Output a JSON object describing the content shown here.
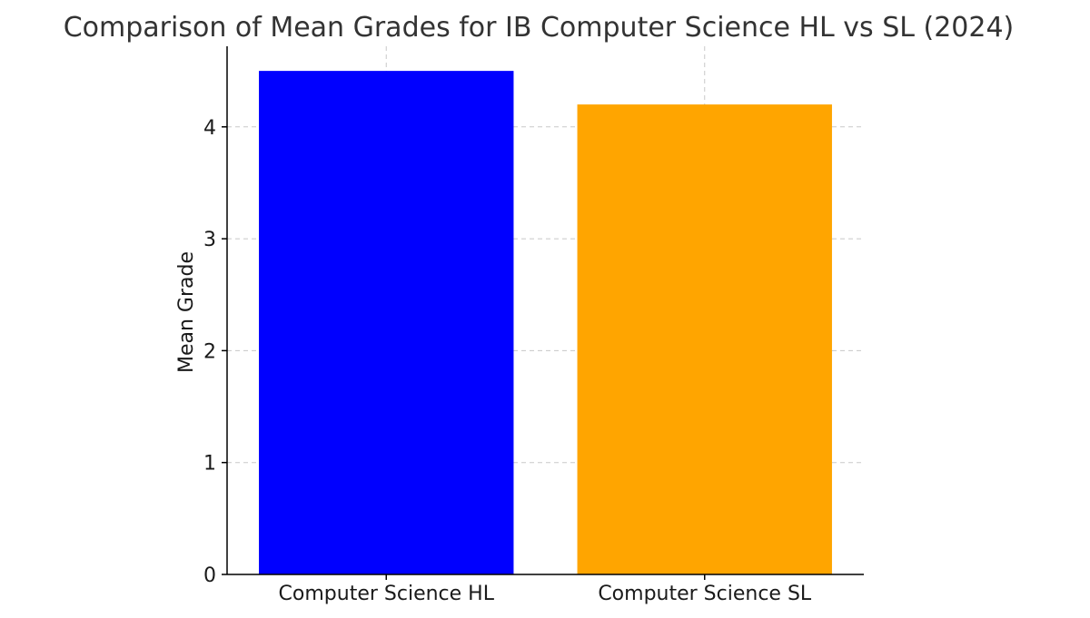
{
  "chart_data": {
    "type": "bar",
    "title": "Comparison of Mean Grades for IB Computer Science HL vs SL (2024)",
    "xlabel": "",
    "ylabel": "Mean Grade",
    "categories": [
      "Computer Science HL",
      "Computer Science SL"
    ],
    "values": [
      4.5,
      4.2
    ],
    "colors": [
      "#0000ff",
      "#ffa500"
    ],
    "ylim": [
      0,
      4.72
    ],
    "yticks": [
      0,
      1,
      2,
      3,
      4
    ],
    "grid": true,
    "legend": "none"
  }
}
